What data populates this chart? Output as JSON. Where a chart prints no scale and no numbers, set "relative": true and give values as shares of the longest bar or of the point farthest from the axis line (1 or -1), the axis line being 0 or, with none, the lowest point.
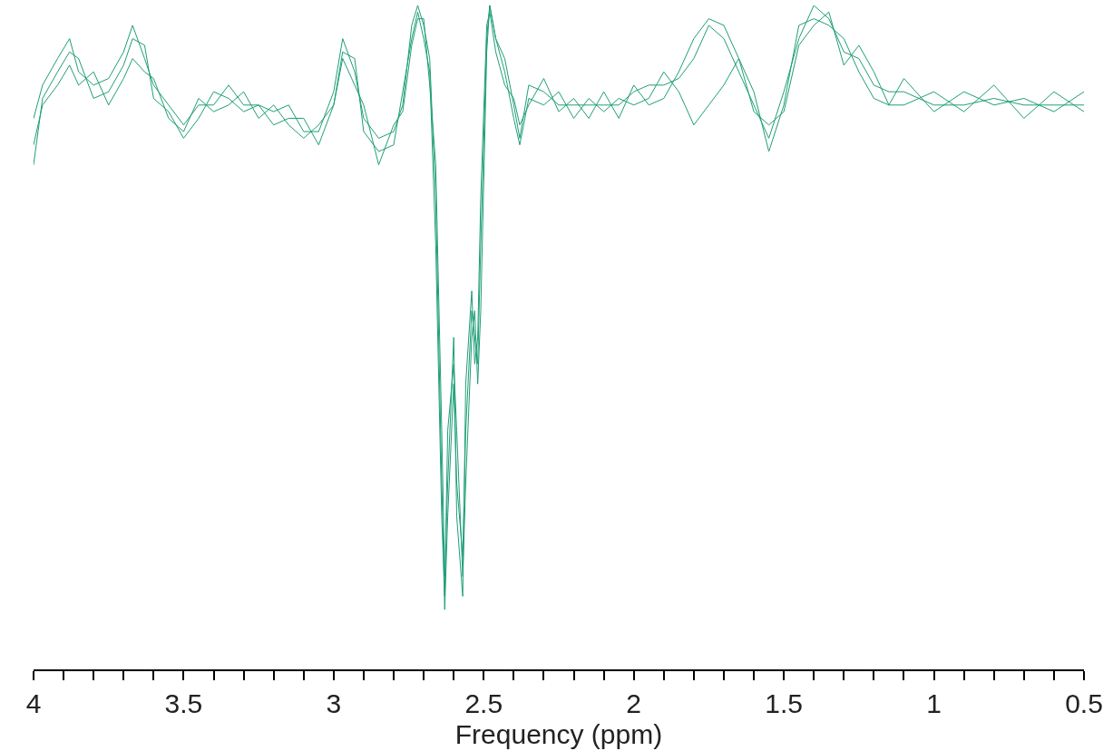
{
  "chart_data": {
    "type": "line",
    "relative": true,
    "xlabel": "Frequency (ppm)",
    "grid": false,
    "marker": "none",
    "line_style": "solid",
    "tick_labels": "x",
    "xlim": [
      4,
      0.5
    ],
    "xticks": [
      4,
      {
        "value": 3.9,
        "label": null
      },
      {
        "value": 3.8,
        "label": null
      },
      {
        "value": 3.7,
        "label": null
      },
      {
        "value": 3.6,
        "label": null
      },
      3.5,
      {
        "value": 3.4,
        "label": null
      },
      {
        "value": 3.3,
        "label": null
      },
      {
        "value": 3.2,
        "label": null
      },
      {
        "value": 3.1,
        "label": null
      },
      3,
      {
        "value": 2.9,
        "label": null
      },
      {
        "value": 2.8,
        "label": null
      },
      {
        "value": 2.7,
        "label": null
      },
      {
        "value": 2.6,
        "label": null
      },
      2.5,
      {
        "value": 2.4,
        "label": null
      },
      {
        "value": 2.3,
        "label": null
      },
      {
        "value": 2.2,
        "label": null
      },
      {
        "value": 2.1,
        "label": null
      },
      2,
      {
        "value": 1.9,
        "label": null
      },
      {
        "value": 1.8,
        "label": null
      },
      {
        "value": 1.7,
        "label": null
      },
      {
        "value": 1.6,
        "label": null
      },
      1.5,
      {
        "value": 1.4,
        "label": null
      },
      {
        "value": 1.3,
        "label": null
      },
      {
        "value": 1.2,
        "label": null
      },
      {
        "value": 1.1,
        "label": null
      },
      1,
      {
        "value": 0.9,
        "label": null
      },
      {
        "value": 0.8,
        "label": null
      },
      {
        "value": 0.7,
        "label": null
      },
      {
        "value": 0.6,
        "label": null
      },
      0.5
    ],
    "x": [
      4.0,
      3.97,
      3.92,
      3.88,
      3.85,
      3.8,
      3.75,
      3.7,
      3.67,
      3.63,
      3.6,
      3.55,
      3.5,
      3.45,
      3.4,
      3.35,
      3.3,
      3.25,
      3.2,
      3.15,
      3.1,
      3.05,
      3.0,
      2.97,
      2.93,
      2.9,
      2.85,
      2.8,
      2.77,
      2.74,
      2.72,
      2.7,
      2.68,
      2.66,
      2.64,
      2.63,
      2.62,
      2.6,
      2.59,
      2.57,
      2.56,
      2.54,
      2.53,
      2.52,
      2.51,
      2.49,
      2.48,
      2.46,
      2.43,
      2.4,
      2.38,
      2.35,
      2.3,
      2.25,
      2.2,
      2.15,
      2.1,
      2.05,
      2.0,
      1.95,
      1.9,
      1.85,
      1.8,
      1.75,
      1.7,
      1.65,
      1.6,
      1.55,
      1.5,
      1.45,
      1.4,
      1.35,
      1.3,
      1.25,
      1.2,
      1.15,
      1.1,
      1.0,
      0.9,
      0.8,
      0.7,
      0.6,
      0.5
    ],
    "series": [
      {
        "color": "#1f9e78",
        "values": [
          0.83,
          0.88,
          0.92,
          0.95,
          0.9,
          0.88,
          0.89,
          0.93,
          0.97,
          0.92,
          0.88,
          0.85,
          0.82,
          0.85,
          0.85,
          0.88,
          0.85,
          0.85,
          0.84,
          0.85,
          0.81,
          0.81,
          0.87,
          0.95,
          0.9,
          0.83,
          0.8,
          0.81,
          0.85,
          0.97,
          1.0,
          0.97,
          0.92,
          0.71,
          0.28,
          0.09,
          0.23,
          0.43,
          0.28,
          0.17,
          0.36,
          0.54,
          0.5,
          0.46,
          0.64,
          0.95,
          1.0,
          0.95,
          0.92,
          0.85,
          0.8,
          0.88,
          0.87,
          0.85,
          0.85,
          0.85,
          0.85,
          0.85,
          0.87,
          0.88,
          0.88,
          0.89,
          0.92,
          0.97,
          0.95,
          0.9,
          0.85,
          0.8,
          0.87,
          0.95,
          1.0,
          0.98,
          0.93,
          0.92,
          0.88,
          0.87,
          0.87,
          0.85,
          0.85,
          0.86,
          0.85,
          0.85,
          0.85
        ]
      },
      {
        "color": "#1f9e78",
        "values": [
          0.76,
          0.86,
          0.9,
          0.93,
          0.92,
          0.86,
          0.87,
          0.91,
          0.95,
          0.94,
          0.86,
          0.84,
          0.8,
          0.83,
          0.87,
          0.86,
          0.84,
          0.85,
          0.82,
          0.83,
          0.83,
          0.79,
          0.85,
          0.93,
          0.92,
          0.81,
          0.78,
          0.79,
          0.87,
          0.95,
          0.99,
          0.95,
          0.9,
          0.64,
          0.23,
          0.11,
          0.36,
          0.46,
          0.36,
          0.14,
          0.28,
          0.5,
          0.54,
          0.43,
          0.54,
          0.93,
          1.0,
          0.95,
          0.9,
          0.83,
          0.79,
          0.86,
          0.85,
          0.87,
          0.83,
          0.86,
          0.84,
          0.86,
          0.85,
          0.86,
          0.9,
          0.87,
          0.82,
          0.85,
          0.88,
          0.92,
          0.87,
          0.78,
          0.85,
          0.97,
          0.98,
          0.97,
          0.95,
          0.9,
          0.86,
          0.85,
          0.89,
          0.84,
          0.87,
          0.85,
          0.86,
          0.84,
          0.87
        ]
      },
      {
        "color": "#1f9e78",
        "values": [
          0.79,
          0.85,
          0.88,
          0.91,
          0.88,
          0.9,
          0.85,
          0.89,
          0.92,
          0.9,
          0.89,
          0.83,
          0.81,
          0.86,
          0.84,
          0.85,
          0.87,
          0.83,
          0.85,
          0.82,
          0.8,
          0.82,
          0.85,
          0.92,
          0.88,
          0.85,
          0.76,
          0.82,
          0.84,
          0.94,
          0.98,
          0.98,
          0.88,
          0.76,
          0.36,
          0.14,
          0.28,
          0.5,
          0.23,
          0.11,
          0.43,
          0.57,
          0.46,
          0.5,
          0.71,
          0.97,
          0.99,
          0.93,
          0.88,
          0.86,
          0.82,
          0.85,
          0.89,
          0.84,
          0.86,
          0.83,
          0.87,
          0.83,
          0.88,
          0.85,
          0.86,
          0.9,
          0.95,
          0.98,
          0.97,
          0.92,
          0.84,
          0.82,
          0.84,
          0.94,
          0.97,
          0.99,
          0.91,
          0.94,
          0.9,
          0.85,
          0.85,
          0.87,
          0.84,
          0.88,
          0.83,
          0.87,
          0.84
        ]
      }
    ]
  }
}
